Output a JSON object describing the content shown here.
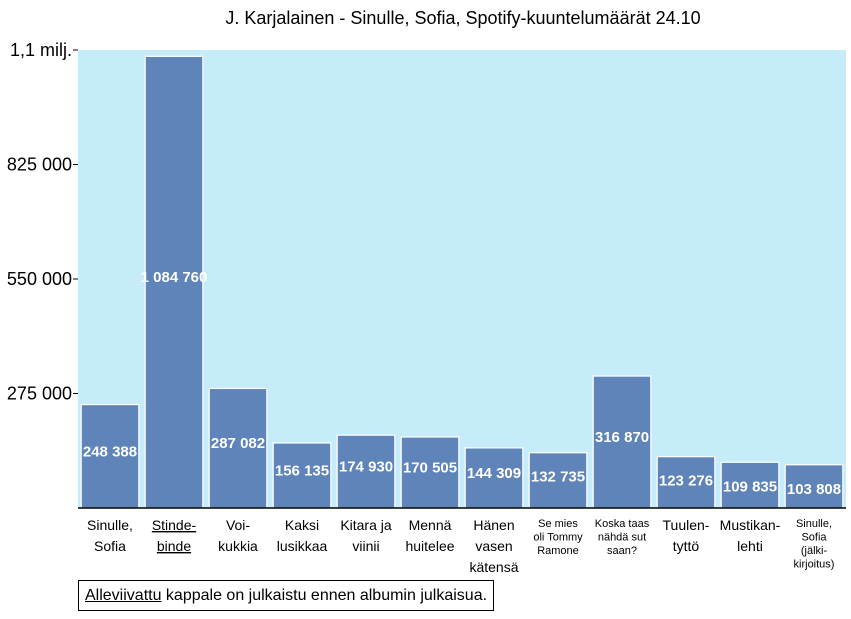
{
  "chart_data": {
    "type": "bar",
    "title": "J. Karjalainen - Sinulle, Sofia, Spotify-kuuntelumäärät 24.10",
    "xlabel": "",
    "ylabel": "",
    "ylim": [
      0,
      1100000
    ],
    "yticks": [
      {
        "value": 275000,
        "label": "275 000"
      },
      {
        "value": 550000,
        "label": "550 000"
      },
      {
        "value": 825000,
        "label": "825 000"
      },
      {
        "value": 1100000,
        "label": "1,1 milj."
      }
    ],
    "grid": false,
    "plot_background": "#c6ecfa",
    "bar_color": "#5e84b9",
    "categories": [
      {
        "lines": [
          "Sinulle,",
          "Sofia"
        ],
        "underlined": false,
        "small": false
      },
      {
        "lines": [
          "Stinde-",
          "binde"
        ],
        "underlined": true,
        "small": false
      },
      {
        "lines": [
          "Voi-",
          "kukkia"
        ],
        "underlined": false,
        "small": false
      },
      {
        "lines": [
          "Kaksi",
          "lusikkaa"
        ],
        "underlined": false,
        "small": false
      },
      {
        "lines": [
          "Kitara ja",
          "viinii"
        ],
        "underlined": false,
        "small": false
      },
      {
        "lines": [
          "Mennä",
          "huitelee"
        ],
        "underlined": false,
        "small": false
      },
      {
        "lines": [
          "Hänen",
          "vasen",
          "kätensä"
        ],
        "underlined": false,
        "small": false
      },
      {
        "lines": [
          "Se mies",
          "oli Tommy",
          "Ramone"
        ],
        "underlined": false,
        "small": true
      },
      {
        "lines": [
          "Koska taas",
          "nähdä sut",
          "saan?"
        ],
        "underlined": false,
        "small": true
      },
      {
        "lines": [
          "Tuulen-",
          "tyttö"
        ],
        "underlined": false,
        "small": false
      },
      {
        "lines": [
          "Mustikan-",
          "lehti"
        ],
        "underlined": false,
        "small": false
      },
      {
        "lines": [
          "Sinulle,",
          "Sofia",
          "(jälki-",
          "kirjoitus)"
        ],
        "underlined": false,
        "small": true
      }
    ],
    "values": [
      248388,
      1084760,
      287082,
      156135,
      174930,
      170505,
      144309,
      132735,
      316870,
      123276,
      109835,
      103808
    ],
    "value_labels": [
      "248 388",
      "1 084 760",
      "287 082",
      "156 135",
      "174 930",
      "170 505",
      "144 309",
      "132 735",
      "316 870",
      "123 276",
      "109 835",
      "103 808"
    ]
  },
  "note": {
    "underlined_part": "Alleviivattu",
    "rest": " kappale on julkaistu ennen albumin julkaisua."
  }
}
